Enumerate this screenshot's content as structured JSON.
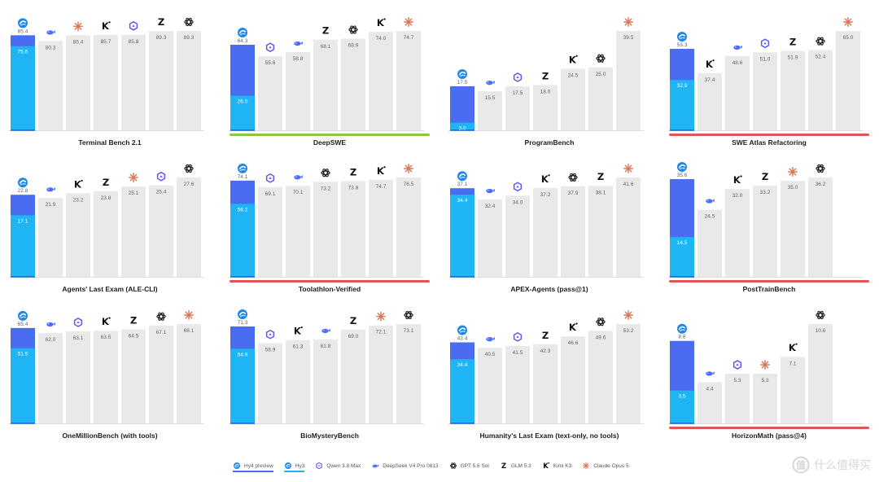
{
  "chart_data": [
    {
      "type": "bar",
      "title": "Terminal Bench 2.1",
      "underline": "",
      "hy4": 85.4,
      "hy3": 75.6,
      "bars": [
        {
          "model": "deepseek",
          "value": 80.3
        },
        {
          "model": "claude",
          "value": 85.4
        },
        {
          "model": "kimi",
          "value": 85.7
        },
        {
          "model": "qwen",
          "value": 85.8
        },
        {
          "model": "glm",
          "value": 89.3
        },
        {
          "model": "gpt",
          "value": 89.3
        }
      ]
    },
    {
      "type": "bar",
      "title": "DeepSWE",
      "underline": "#8cc63f",
      "hy4": 64.3,
      "hy3": 26.0,
      "bars": [
        {
          "model": "qwen",
          "value": 55.6
        },
        {
          "model": "deepseek",
          "value": 58.8
        },
        {
          "model": "glm",
          "value": 68.1
        },
        {
          "model": "gpt",
          "value": 68.9
        },
        {
          "model": "kimi",
          "value": 74.0
        },
        {
          "model": "claude",
          "value": 74.7
        }
      ]
    },
    {
      "type": "bar",
      "title": "ProgramBench",
      "underline": "",
      "hy4": 17.5,
      "hy3": 3.0,
      "bars": [
        {
          "model": "deepseek",
          "value": 15.5
        },
        {
          "model": "qwen",
          "value": 17.5
        },
        {
          "model": "glm",
          "value": 18.0
        },
        {
          "model": "kimi",
          "value": 24.5
        },
        {
          "model": "gpt",
          "value": 25.0
        },
        {
          "model": "claude",
          "value": 39.5
        }
      ]
    },
    {
      "type": "bar",
      "title": "SWE Atlas Refactoring",
      "underline": "#e05555",
      "hy4": 53.3,
      "hy3": 32.9,
      "bars": [
        {
          "model": "kimi",
          "value": 37.4
        },
        {
          "model": "deepseek",
          "value": 48.6
        },
        {
          "model": "qwen",
          "value": 51.0
        },
        {
          "model": "glm",
          "value": 51.9
        },
        {
          "model": "gpt",
          "value": 52.4
        },
        {
          "model": "claude",
          "value": 65.0
        }
      ]
    },
    {
      "type": "bar",
      "title": "Agents' Last Exam (ALE-CLI)",
      "underline": "",
      "hy4": 22.8,
      "hy3": 17.1,
      "bars": [
        {
          "model": "deepseek",
          "value": 21.9
        },
        {
          "model": "kimi",
          "value": 23.2
        },
        {
          "model": "glm",
          "value": 23.8
        },
        {
          "model": "claude",
          "value": 25.1
        },
        {
          "model": "qwen",
          "value": 25.4
        },
        {
          "model": "gpt",
          "value": 27.6
        }
      ]
    },
    {
      "type": "bar",
      "title": "Toolathlon-Verified",
      "underline": "#e05555",
      "hy4": 74.1,
      "hy3": 56.2,
      "bars": [
        {
          "model": "qwen",
          "value": 69.1
        },
        {
          "model": "deepseek",
          "value": 70.1
        },
        {
          "model": "gpt",
          "value": 73.2
        },
        {
          "model": "glm",
          "value": 73.8
        },
        {
          "model": "kimi",
          "value": 74.7
        },
        {
          "model": "claude",
          "value": 76.5
        }
      ]
    },
    {
      "type": "bar",
      "title": "APEX-Agents (pass@1)",
      "underline": "",
      "hy4": 37.1,
      "hy3": 34.4,
      "bars": [
        {
          "model": "deepseek",
          "value": 32.4
        },
        {
          "model": "qwen",
          "value": 34.0
        },
        {
          "model": "kimi",
          "value": 37.2
        },
        {
          "model": "gpt",
          "value": 37.9
        },
        {
          "model": "glm",
          "value": 38.1
        },
        {
          "model": "claude",
          "value": 41.6
        }
      ]
    },
    {
      "type": "bar",
      "title": "PostTrainBench",
      "underline": "#e05555",
      "hy4": 35.6,
      "hy3": 14.5,
      "bars": [
        {
          "model": "deepseek",
          "value": 24.5
        },
        {
          "model": "kimi",
          "value": 32.0
        },
        {
          "model": "glm",
          "value": 33.2
        },
        {
          "model": "claude",
          "value": 35.0
        },
        {
          "model": "gpt",
          "value": 36.2
        }
      ]
    },
    {
      "type": "bar",
      "title": "OneMillionBench (with tools)",
      "underline": "",
      "hy4": 65.4,
      "hy3": 51.5,
      "bars": [
        {
          "model": "deepseek",
          "value": 62.0
        },
        {
          "model": "qwen",
          "value": 63.1
        },
        {
          "model": "kimi",
          "value": 63.5
        },
        {
          "model": "glm",
          "value": 64.5
        },
        {
          "model": "gpt",
          "value": 67.1
        },
        {
          "model": "claude",
          "value": 68.1
        }
      ]
    },
    {
      "type": "bar",
      "title": "BioMysteryBench",
      "underline": "",
      "hy4": 71.3,
      "hy3": 54.9,
      "bars": [
        {
          "model": "qwen",
          "value": 58.9
        },
        {
          "model": "kimi",
          "value": 61.3
        },
        {
          "model": "deepseek",
          "value": 61.8
        },
        {
          "model": "glm",
          "value": 69.0
        },
        {
          "model": "claude",
          "value": 72.1
        },
        {
          "model": "gpt",
          "value": 73.1
        }
      ]
    },
    {
      "type": "bar",
      "title": "Humanity's Last Exam (text-only, no tools)",
      "underline": "",
      "hy4": 43.4,
      "hy3": 34.4,
      "bars": [
        {
          "model": "deepseek",
          "value": 40.5
        },
        {
          "model": "qwen",
          "value": 41.5
        },
        {
          "model": "glm",
          "value": 42.3
        },
        {
          "model": "kimi",
          "value": 46.6
        },
        {
          "model": "gpt",
          "value": 49.6
        },
        {
          "model": "claude",
          "value": 53.2
        }
      ]
    },
    {
      "type": "bar",
      "title": "HorizonMath (pass@4)",
      "underline": "#e05555",
      "hy4": 8.8,
      "hy3": 3.5,
      "bars": [
        {
          "model": "deepseek",
          "value": 4.4
        },
        {
          "model": "qwen",
          "value": 5.3
        },
        {
          "model": "claude",
          "value": 5.3
        },
        {
          "model": "kimi",
          "value": 7.1
        },
        {
          "model": "gpt",
          "value": 10.6
        }
      ]
    }
  ],
  "legend": [
    {
      "model": "hy4",
      "label": "Hy4 preview"
    },
    {
      "model": "hy3",
      "label": "Hy3"
    },
    {
      "model": "qwen",
      "label": "Qwen 3.8 Max"
    },
    {
      "model": "deepseek",
      "label": "DeepSeek V4 Pro 0813"
    },
    {
      "model": "gpt",
      "label": "GPT 5.6 Sol"
    },
    {
      "model": "glm",
      "label": "GLM 5.3"
    },
    {
      "model": "kimi",
      "label": "Kimi K3"
    },
    {
      "model": "claude",
      "label": "Claude Opus 5"
    }
  ],
  "colors": {
    "hy4": "#4a6cf0",
    "hy3": "#1fb5f5",
    "other_bar": "#e9e9e9",
    "deepseek": "#4d6bfe",
    "qwen": "#615ced",
    "claude": "#d97757",
    "kimi": "#111111",
    "glm": "#111111",
    "gpt": "#222222",
    "hy_icon": "#1e88e5",
    "value_text": "#666666",
    "hy3_value_text": "#ffffff"
  },
  "watermark": {
    "text": "什么值得买"
  }
}
